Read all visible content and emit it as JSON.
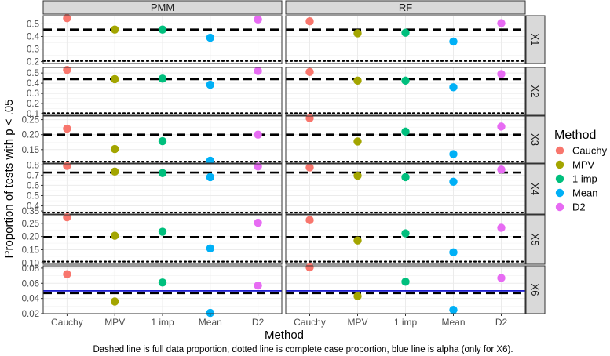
{
  "colors": {
    "Cauchy": "#F8766D",
    "MPV": "#A3A500",
    "1 imp": "#00BF7D",
    "Mean": "#00B0F6",
    "D2": "#E76BF3",
    "panel_bg": "#FFFFFF",
    "grid": "#EBEBEB",
    "strip_bg": "#D9D9D9",
    "border": "#333333",
    "alpha_line": "#0000CC"
  },
  "chart_data": {
    "type": "scatter",
    "facet_columns": [
      "PMM",
      "RF"
    ],
    "facet_rows": [
      "X1",
      "X2",
      "X3",
      "X4",
      "X5",
      "X6"
    ],
    "x_categories": [
      "Cauchy",
      "MPV",
      "1 imp",
      "Mean",
      "D2"
    ],
    "xlabel": "Method",
    "ylabel": "Proportion of tests with p < .05",
    "caption": "Dashed line is full data proportion, dotted line is complete case proportion, blue line is alpha (only for X6).",
    "legend": {
      "title": "Method",
      "entries": [
        "Cauchy",
        "MPV",
        "1 imp",
        "Mean",
        "D2"
      ],
      "position": "right"
    },
    "rows": [
      {
        "name": "X1",
        "ylim": [
          0.185,
          0.565
        ],
        "yticks": [
          0.2,
          0.3,
          0.4,
          0.5
        ],
        "ytick_labels": [
          "0.2",
          "0.3",
          "0.4",
          "0.5"
        ],
        "full_data": 0.455,
        "complete_case": 0.205,
        "alpha": null,
        "values": {
          "PMM": [
            0.545,
            0.455,
            0.455,
            0.39,
            0.535
          ],
          "RF": [
            0.52,
            0.425,
            0.43,
            0.36,
            0.505
          ]
        }
      },
      {
        "name": "X2",
        "ylim": [
          0.085,
          0.555
        ],
        "yticks": [
          0.1,
          0.2,
          0.3,
          0.4,
          0.5
        ],
        "ytick_labels": [
          "0.1",
          "0.2",
          "0.3",
          "0.4",
          "0.5"
        ],
        "full_data": 0.44,
        "complete_case": 0.105,
        "alpha": null,
        "values": {
          "PMM": [
            0.53,
            0.44,
            0.445,
            0.385,
            0.52
          ],
          "RF": [
            0.51,
            0.425,
            0.425,
            0.36,
            0.49
          ]
        }
      },
      {
        "name": "X3",
        "ylim": [
          0.105,
          0.262
        ],
        "yticks": [
          0.15,
          0.2,
          0.25
        ],
        "ytick_labels": [
          "0.15",
          "0.20",
          "0.25"
        ],
        "full_data": 0.2,
        "complete_case": 0.11,
        "alpha": null,
        "values": {
          "PMM": [
            0.22,
            0.152,
            0.178,
            0.113,
            0.2
          ],
          "RF": [
            0.255,
            0.177,
            0.21,
            0.135,
            0.227
          ]
        }
      },
      {
        "name": "X4",
        "ylim": [
          0.32,
          0.81
        ],
        "yticks": [
          0.4,
          0.5,
          0.6,
          0.7,
          0.8
        ],
        "ytick_labels": [
          "0.4",
          "0.5",
          "0.6",
          "0.7",
          "0.8"
        ],
        "extra_yticks": [
          0.35
        ],
        "extra_ytick_labels": [
          "0.35"
        ],
        "full_data": 0.725,
        "complete_case": 0.335,
        "alpha": null,
        "values": {
          "PMM": [
            0.79,
            0.735,
            0.72,
            0.68,
            0.785
          ],
          "RF": [
            0.775,
            0.695,
            0.68,
            0.635,
            0.755
          ]
        }
      },
      {
        "name": "X5",
        "ylim": [
          0.095,
          0.282
        ],
        "yticks": [
          0.1,
          0.15,
          0.2,
          0.25
        ],
        "ytick_labels": [
          "0.10",
          "0.15",
          "0.20",
          "0.25"
        ],
        "full_data": 0.198,
        "complete_case": 0.105,
        "alpha": null,
        "values": {
          "PMM": [
            0.273,
            0.203,
            0.218,
            0.155,
            0.252
          ],
          "RF": [
            0.262,
            0.185,
            0.212,
            0.14,
            0.233
          ]
        }
      },
      {
        "name": "X6",
        "ylim": [
          0.02,
          0.083
        ],
        "yticks": [
          0.02,
          0.04,
          0.06,
          0.08
        ],
        "ytick_labels": [
          "0.02",
          "0.04",
          "0.06",
          "0.08"
        ],
        "full_data": 0.047,
        "complete_case": null,
        "alpha": 0.05,
        "values": {
          "PMM": [
            0.072,
            0.036,
            0.061,
            0.021,
            0.057
          ],
          "RF": [
            0.081,
            0.043,
            0.062,
            0.025,
            0.067
          ]
        }
      }
    ]
  }
}
